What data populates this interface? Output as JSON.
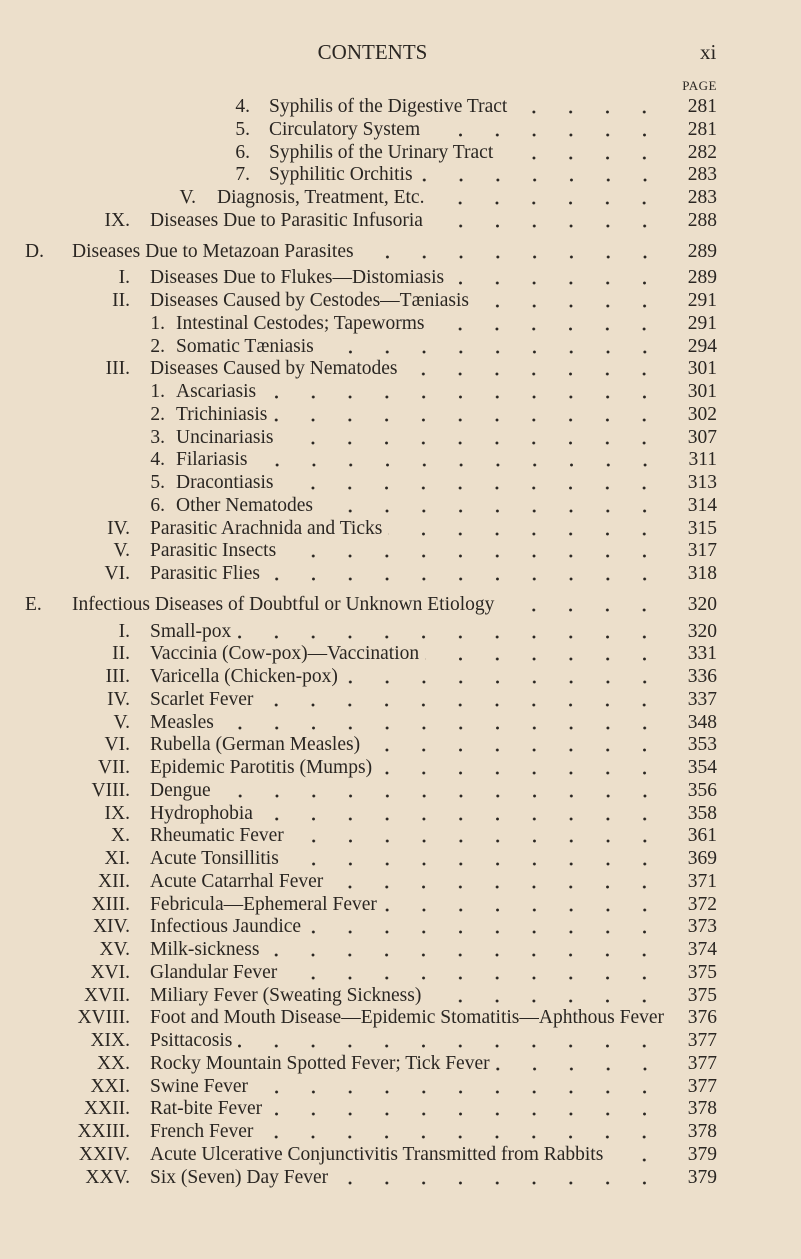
{
  "header": {
    "title": "CONTENTS",
    "page_number": "xi",
    "page_label": "PAGE"
  },
  "entries": [
    {
      "level": "n2",
      "num": "4.",
      "text": "Syphilis of the Digestive Tract",
      "page": "281"
    },
    {
      "level": "n2",
      "num": "5.",
      "text": "Circulatory System",
      "page": "281"
    },
    {
      "level": "n2",
      "num": "6.",
      "text": "Syphilis of the Urinary Tract",
      "page": "282"
    },
    {
      "level": "n2",
      "num": "7.",
      "text": "Syphilitic Orchitis",
      "page": "283"
    },
    {
      "level": "r2",
      "num": "V.",
      "text": "Diagnosis, Treatment, Etc.",
      "page": "283"
    },
    {
      "level": "r",
      "num": "IX.",
      "text": "Diseases Due to Parasitic Infusoria",
      "page": "288"
    },
    {
      "level": "a",
      "num": "D.",
      "text": "Diseases Due to Metazoan Parasites",
      "page": "289"
    },
    {
      "level": "r",
      "num": "I.",
      "text": "Diseases Due to Flukes—Distomiasis",
      "page": "289"
    },
    {
      "level": "r",
      "num": "II.",
      "text": "Diseases Caused by Cestodes—Tæniasis",
      "page": "291"
    },
    {
      "level": "n",
      "num": "1.",
      "text": "Intestinal Cestodes; Tapeworms",
      "page": "291"
    },
    {
      "level": "n",
      "num": "2.",
      "text": "Somatic Tæniasis",
      "page": "294"
    },
    {
      "level": "r",
      "num": "III.",
      "text": "Diseases Caused by Nematodes",
      "page": "301"
    },
    {
      "level": "n",
      "num": "1.",
      "text": "Ascariasis",
      "page": "301"
    },
    {
      "level": "n",
      "num": "2.",
      "text": "Trichiniasis",
      "page": "302"
    },
    {
      "level": "n",
      "num": "3.",
      "text": "Uncinariasis",
      "page": "307"
    },
    {
      "level": "n",
      "num": "4.",
      "text": "Filariasis",
      "page": "311"
    },
    {
      "level": "n",
      "num": "5.",
      "text": "Dracontiasis",
      "page": "313"
    },
    {
      "level": "n",
      "num": "6.",
      "text": "Other Nematodes",
      "page": "314"
    },
    {
      "level": "r",
      "num": "IV.",
      "text": "Parasitic Arachnida and Ticks",
      "page": "315"
    },
    {
      "level": "r",
      "num": "V.",
      "text": "Parasitic Insects",
      "page": "317"
    },
    {
      "level": "r",
      "num": "VI.",
      "text": "Parasitic Flies",
      "page": "318"
    },
    {
      "level": "a",
      "num": "E.",
      "text": "Infectious Diseases of Doubtful or Unknown Etiology",
      "page": "320"
    },
    {
      "level": "r",
      "num": "I.",
      "text": "Small-pox",
      "page": "320"
    },
    {
      "level": "r",
      "num": "II.",
      "text": "Vaccinia (Cow-pox)—Vaccination",
      "page": "331"
    },
    {
      "level": "r",
      "num": "III.",
      "text": "Varicella (Chicken-pox)",
      "page": "336"
    },
    {
      "level": "r",
      "num": "IV.",
      "text": "Scarlet Fever",
      "page": "337"
    },
    {
      "level": "r",
      "num": "V.",
      "text": "Measles",
      "page": "348"
    },
    {
      "level": "r",
      "num": "VI.",
      "text": "Rubella (German Measles)",
      "page": "353"
    },
    {
      "level": "r",
      "num": "VII.",
      "text": "Epidemic Parotitis (Mumps)",
      "page": "354"
    },
    {
      "level": "r",
      "num": "VIII.",
      "text": "Dengue",
      "page": "356"
    },
    {
      "level": "r",
      "num": "IX.",
      "text": "Hydrophobia",
      "page": "358"
    },
    {
      "level": "r",
      "num": "X.",
      "text": "Rheumatic Fever",
      "page": "361"
    },
    {
      "level": "r",
      "num": "XI.",
      "text": "Acute Tonsillitis",
      "page": "369"
    },
    {
      "level": "r",
      "num": "XII.",
      "text": "Acute Catarrhal Fever",
      "page": "371"
    },
    {
      "level": "r",
      "num": "XIII.",
      "text": "Febricula—Ephemeral Fever",
      "page": "372"
    },
    {
      "level": "r",
      "num": "XIV.",
      "text": "Infectious Jaundice",
      "page": "373"
    },
    {
      "level": "r",
      "num": "XV.",
      "text": "Milk-sickness",
      "page": "374"
    },
    {
      "level": "r",
      "num": "XVI.",
      "text": "Glandular Fever",
      "page": "375"
    },
    {
      "level": "r",
      "num": "XVII.",
      "text": "Miliary Fever (Sweating Sickness)",
      "page": "375"
    },
    {
      "level": "r",
      "num": "XVIII.",
      "text": "Foot and Mouth Disease—Epidemic Stomatitis—Aphthous Fever",
      "page": "376"
    },
    {
      "level": "r",
      "num": "XIX.",
      "text": "Psittacosis",
      "page": "377"
    },
    {
      "level": "r",
      "num": "XX.",
      "text": "Rocky Mountain Spotted Fever; Tick Fever",
      "page": "377"
    },
    {
      "level": "r",
      "num": "XXI.",
      "text": "Swine Fever",
      "page": "377"
    },
    {
      "level": "r",
      "num": "XXII.",
      "text": "Rat-bite Fever",
      "page": "378"
    },
    {
      "level": "r",
      "num": "XXIII.",
      "text": "French Fever",
      "page": "378"
    },
    {
      "level": "r",
      "num": "XXIV.",
      "text": "Acute Ulcerative Conjunctivitis Transmitted from Rabbits",
      "page": "379"
    },
    {
      "level": "r",
      "num": "XXV.",
      "text": "Six (Seven) Day Fever",
      "page": "379"
    }
  ]
}
